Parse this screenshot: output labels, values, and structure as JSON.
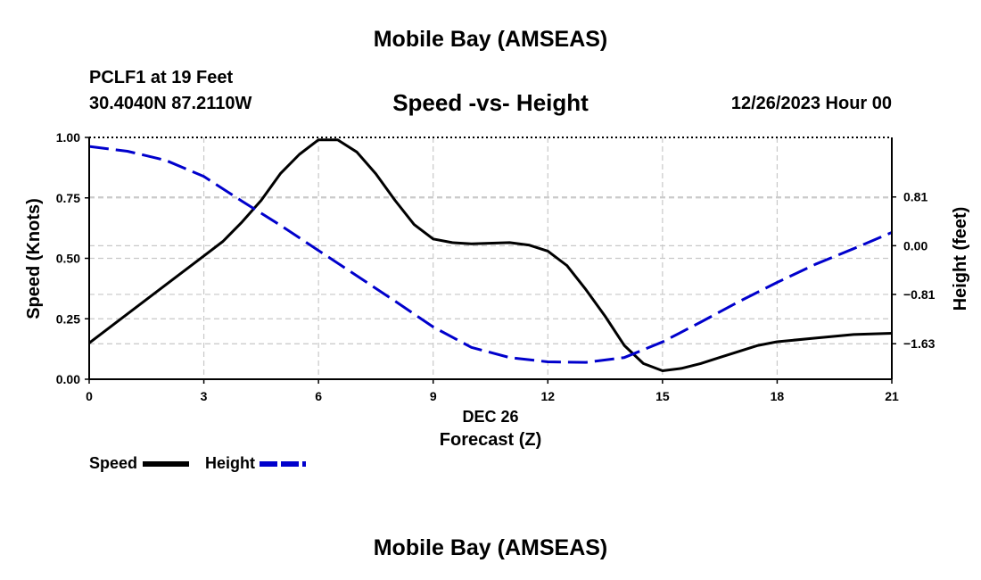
{
  "page": {
    "main_title": "Mobile Bay (AMSEAS)",
    "bottom_title": "Mobile Bay (AMSEAS)",
    "station": "PCLF1 at 19 Feet",
    "coordinates": "30.4040N  87.2110W",
    "datetime": "12/26/2023 Hour 00"
  },
  "legend": {
    "speed_label": "Speed",
    "height_label": "Height"
  },
  "colors": {
    "speed": "#000000",
    "height": "#0000cc",
    "grid": "#c8c8c8"
  },
  "chart_data": {
    "type": "line",
    "title": "Speed -vs- Height",
    "xlabel": "Forecast (Z)",
    "date_label": "DEC 26",
    "ylabel": "Speed (Knots)",
    "y2label": "Height (feet)",
    "xlim": [
      0,
      21
    ],
    "ylim": [
      0,
      1.0
    ],
    "y2lim": [
      -2.22,
      1.8
    ],
    "x_ticks": [
      0,
      3,
      6,
      9,
      12,
      15,
      18,
      21
    ],
    "x_tick_labels": [
      "0",
      "3",
      "6",
      "9",
      "12",
      "15",
      "18",
      "21"
    ],
    "y_ticks": [
      0,
      0.25,
      0.5,
      0.75,
      1.0
    ],
    "y_tick_labels": [
      "0.00",
      "0.25",
      "0.50",
      "0.75",
      "1.00"
    ],
    "y2_ticks": [
      -1.63,
      -0.81,
      0.0,
      0.81
    ],
    "y2_tick_labels": [
      "−1.63",
      "−0.81",
      "0.00",
      "0.81"
    ],
    "grid": true,
    "series": [
      {
        "name": "Speed",
        "axis": "left",
        "style": "solid",
        "x": [
          0,
          1,
          2,
          3,
          3.5,
          4,
          4.5,
          5,
          5.5,
          6,
          6.5,
          7,
          7.5,
          8,
          8.5,
          9,
          9.5,
          10,
          11,
          11.5,
          12,
          12.5,
          13,
          13.5,
          14,
          14.5,
          15,
          15.5,
          16,
          16.5,
          17,
          17.5,
          18,
          19,
          20,
          21
        ],
        "values": [
          0.15,
          0.27,
          0.39,
          0.51,
          0.57,
          0.65,
          0.74,
          0.85,
          0.93,
          0.99,
          0.99,
          0.94,
          0.85,
          0.74,
          0.64,
          0.58,
          0.565,
          0.56,
          0.565,
          0.555,
          0.53,
          0.47,
          0.37,
          0.26,
          0.14,
          0.065,
          0.035,
          0.045,
          0.065,
          0.09,
          0.115,
          0.14,
          0.155,
          0.17,
          0.185,
          0.19
        ]
      },
      {
        "name": "Height",
        "axis": "right",
        "style": "dashed",
        "x": [
          0,
          1,
          2,
          3,
          4,
          5,
          6,
          7,
          8,
          9,
          10,
          11,
          12,
          13,
          14,
          15,
          16,
          17,
          18,
          19,
          20,
          21
        ],
        "values": [
          1.65,
          1.57,
          1.42,
          1.15,
          0.74,
          0.34,
          -0.08,
          -0.5,
          -0.92,
          -1.35,
          -1.69,
          -1.86,
          -1.93,
          -1.94,
          -1.86,
          -1.6,
          -1.27,
          -0.93,
          -0.61,
          -0.31,
          -0.05,
          0.22
        ]
      }
    ]
  }
}
